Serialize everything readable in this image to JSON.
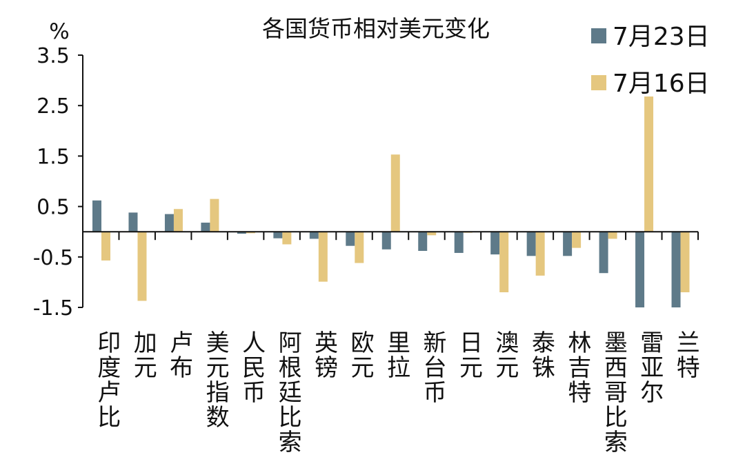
{
  "chart_data": {
    "type": "bar",
    "title": "各国货币相对美元变化",
    "unit_label": "%",
    "categories": [
      "印度卢比",
      "加元",
      "卢布",
      "美元指数",
      "人民币",
      "阿根廷比索",
      "英镑",
      "欧元",
      "里拉",
      "新台币",
      "日元",
      "澳元",
      "泰铢",
      "林吉特",
      "墨西哥比索",
      "雷亚尔",
      "兰特"
    ],
    "series": [
      {
        "name": "7月23日",
        "color": "#5e7a89",
        "values": [
          0.62,
          0.38,
          0.35,
          0.18,
          -0.04,
          -0.13,
          -0.14,
          -0.28,
          -0.35,
          -0.38,
          -0.42,
          -0.45,
          -0.48,
          -0.48,
          -0.82,
          -1.5,
          -1.5
        ]
      },
      {
        "name": "7月16日",
        "color": "#e5c77f",
        "values": [
          -0.57,
          -1.37,
          0.45,
          0.65,
          -0.03,
          -0.25,
          -0.99,
          -0.62,
          1.53,
          -0.07,
          0.0,
          -1.2,
          -0.87,
          -0.32,
          -0.14,
          2.68,
          -1.2
        ]
      }
    ],
    "yticks": [
      "3.5",
      "2.5",
      "1.5",
      "0.5",
      "-0.5",
      "-1.5"
    ],
    "ylim": [
      -1.5,
      3.5
    ],
    "legend_position": "top-right",
    "grid": false
  }
}
